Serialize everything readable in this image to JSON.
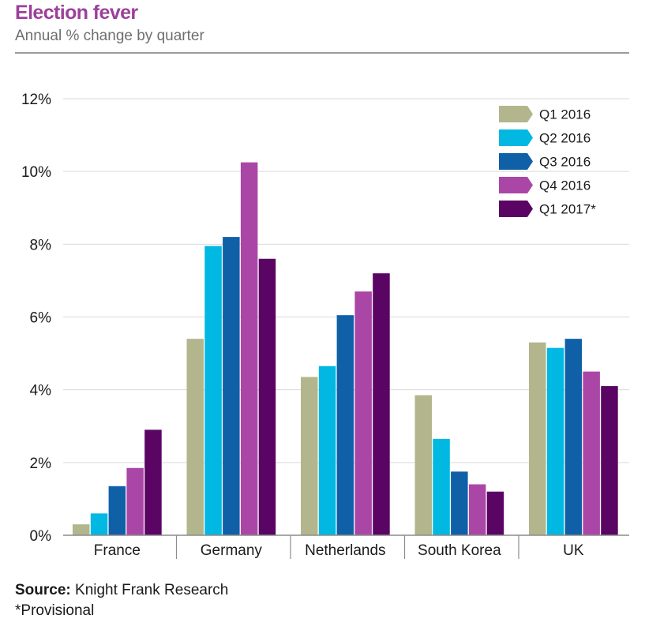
{
  "header": {
    "title": "Election fever",
    "subtitle": "Annual % change by quarter"
  },
  "footer": {
    "source_label": "Source:",
    "source_text": "Knight Frank Research",
    "footnote": "*Provisional"
  },
  "chart_data": {
    "type": "bar",
    "title": "Election fever",
    "subtitle": "Annual % change by quarter",
    "xlabel": "",
    "ylabel": "",
    "ylim": [
      0,
      12
    ],
    "yticks": [
      0,
      2,
      4,
      6,
      8,
      10,
      12
    ],
    "ytick_labels": [
      "0%",
      "2%",
      "4%",
      "6%",
      "8%",
      "10%",
      "12%"
    ],
    "grid": true,
    "legend_position": "top-right",
    "categories": [
      "France",
      "Germany",
      "Netherlands",
      "South Korea",
      "UK"
    ],
    "series": [
      {
        "name": "Q1 2016",
        "color": "#b3b68d",
        "values": [
          0.3,
          5.4,
          4.35,
          3.85,
          5.3
        ]
      },
      {
        "name": "Q2 2016",
        "color": "#00b8e1",
        "values": [
          0.6,
          7.95,
          4.65,
          2.65,
          5.15
        ]
      },
      {
        "name": "Q3 2016",
        "color": "#1060a8",
        "values": [
          1.35,
          8.2,
          6.05,
          1.75,
          5.4
        ]
      },
      {
        "name": "Q4 2016",
        "color": "#aa47a6",
        "values": [
          1.85,
          10.25,
          6.7,
          1.4,
          4.5
        ]
      },
      {
        "name": "Q1 2017*",
        "color": "#5a0564",
        "values": [
          2.9,
          7.6,
          7.2,
          1.2,
          4.1
        ]
      }
    ]
  }
}
